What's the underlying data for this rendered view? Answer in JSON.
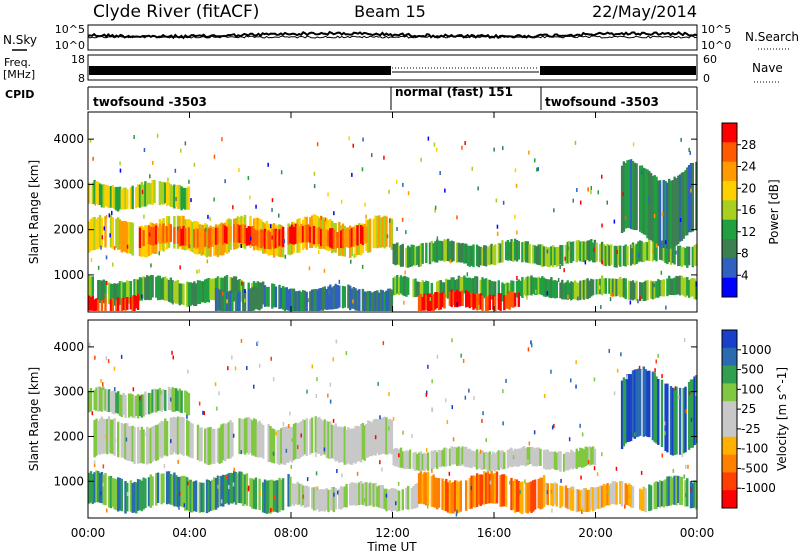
{
  "header": {
    "station": "Clyde River (fitACF)",
    "beam": "Beam 15",
    "date": "22/May/2014"
  },
  "noise_panel": {
    "left_label": "N.Sky",
    "right_label": "N.Search",
    "ticks_left": [
      "10^5",
      "10^0"
    ],
    "ticks_right": [
      "10^5",
      "10^0"
    ]
  },
  "freq_panel": {
    "left_label_1": "Freq.",
    "left_label_2": "[MHz]",
    "right_label": "Nave",
    "ticks_left": [
      "18",
      "8"
    ],
    "ticks_right": [
      "60",
      "0"
    ]
  },
  "cpid": {
    "label": "CPID",
    "segments": [
      {
        "name": "twofsound -3503",
        "start_hr": 0,
        "end_hr": 12
      },
      {
        "name": "normal (fast) 151",
        "start_hr": 12,
        "end_hr": 18
      },
      {
        "name": "twofsound -3503",
        "start_hr": 18,
        "end_hr": 24
      }
    ]
  },
  "power_colorbar": {
    "label": "Power [dB]",
    "ticks": [
      "28",
      "24",
      "20",
      "16",
      "12",
      "8",
      "4"
    ],
    "colors": [
      "#ff0000",
      "#ff5a00",
      "#ff9a00",
      "#ffd000",
      "#a8d020",
      "#20a040",
      "#3a8050",
      "#3060c0",
      "#0000ff"
    ]
  },
  "velocity_colorbar": {
    "label": "Velocity [m s^-1]",
    "ticks": [
      "1000",
      "500",
      "100",
      "25",
      "-25",
      "-100",
      "-500",
      "-1000"
    ],
    "colors": [
      "#1840c8",
      "#2a6ab0",
      "#30a050",
      "#80c840",
      "#c8c8c8",
      "#c8c8c8",
      "#ffb000",
      "#ff8000",
      "#ff4000",
      "#ff0000"
    ]
  },
  "chart_data": {
    "type": "heatmap",
    "x_axis": {
      "label": "Time UT",
      "ticks": [
        "00:00",
        "04:00",
        "08:00",
        "12:00",
        "16:00",
        "20:00",
        "00:00"
      ],
      "range_hr": [
        0,
        24
      ]
    },
    "y_axis": {
      "label": "Slant Range [km]",
      "ticks": [
        "1000",
        "2000",
        "3000",
        "4000"
      ],
      "range_km": [
        180,
        4600
      ]
    },
    "power_bands": [
      {
        "t0": 0,
        "t1": 12,
        "r0": 1500,
        "r1": 2200,
        "level": 3
      },
      {
        "t0": 2,
        "t1": 11,
        "r0": 1650,
        "r1": 2050,
        "level": 1
      },
      {
        "t0": 0,
        "t1": 7,
        "r0": 400,
        "r1": 900,
        "level": 5
      },
      {
        "t0": 0,
        "t1": 2,
        "r0": 200,
        "r1": 500,
        "level": 0
      },
      {
        "t0": 5,
        "t1": 12,
        "r0": 200,
        "r1": 700,
        "level": 6
      },
      {
        "t0": 12,
        "t1": 24,
        "r0": 500,
        "r1": 900,
        "level": 5
      },
      {
        "t0": 13,
        "t1": 17,
        "r0": 250,
        "r1": 600,
        "level": 0
      },
      {
        "t0": 12,
        "t1": 24,
        "r0": 1250,
        "r1": 1700,
        "level": 5
      },
      {
        "t0": 0,
        "t1": 4,
        "r0": 2500,
        "r1": 3000,
        "level": 4
      },
      {
        "t0": 21,
        "t1": 24,
        "r0": 1800,
        "r1": 3300,
        "level": 6
      }
    ],
    "velocity_bands": [
      {
        "t0": 0,
        "t1": 12,
        "r0": 1500,
        "r1": 2300,
        "level": 4
      },
      {
        "t0": 0,
        "t1": 8,
        "r0": 400,
        "r1": 1100,
        "level": 2
      },
      {
        "t0": 8,
        "t1": 13,
        "r0": 400,
        "r1": 900,
        "level": 4
      },
      {
        "t0": 13,
        "t1": 18,
        "r0": 400,
        "r1": 1100,
        "level": 7
      },
      {
        "t0": 18,
        "t1": 22,
        "r0": 400,
        "r1": 900,
        "level": 6
      },
      {
        "t0": 22,
        "t1": 24,
        "r0": 400,
        "r1": 1000,
        "level": 2
      },
      {
        "t0": 12,
        "t1": 20,
        "r0": 1300,
        "r1": 1700,
        "level": 4
      },
      {
        "t0": 0,
        "t1": 4,
        "r0": 2500,
        "r1": 3000,
        "level": 3
      },
      {
        "t0": 21,
        "t1": 24,
        "r0": 1800,
        "r1": 3300,
        "level": 1
      }
    ]
  }
}
